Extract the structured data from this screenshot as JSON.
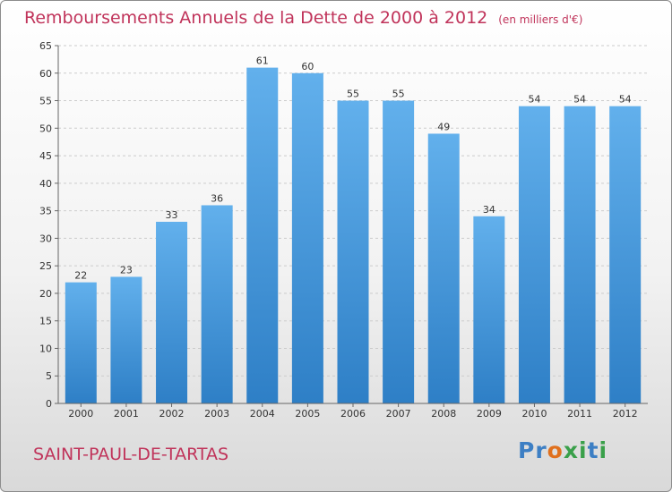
{
  "title": "Remboursements Annuels de la Dette de 2000 à 2012",
  "unit_note": "(en milliers d'€)",
  "city": "SAINT-PAUL-DE-TARTAS",
  "brand": {
    "p1": "Pr",
    "p2": "o",
    "p3": "x",
    "p4": "i",
    "p5": "t",
    "p6": "i"
  },
  "colors": {
    "bar": "#3f96dc",
    "bar_light": "#62b0ec",
    "title": "#c0335a",
    "grid": "#cccccc"
  },
  "chart_data": {
    "type": "bar",
    "categories": [
      "2000",
      "2001",
      "2002",
      "2003",
      "2004",
      "2005",
      "2006",
      "2007",
      "2008",
      "2009",
      "2010",
      "2011",
      "2012"
    ],
    "values": [
      22,
      23,
      33,
      36,
      61,
      60,
      55,
      55,
      49,
      34,
      54,
      54,
      54
    ],
    "ylim": [
      0,
      65
    ],
    "yticks": [
      0,
      5,
      10,
      15,
      20,
      25,
      30,
      35,
      40,
      45,
      50,
      55,
      60,
      65
    ],
    "grid": "horizontal dashed",
    "legend": "none"
  }
}
